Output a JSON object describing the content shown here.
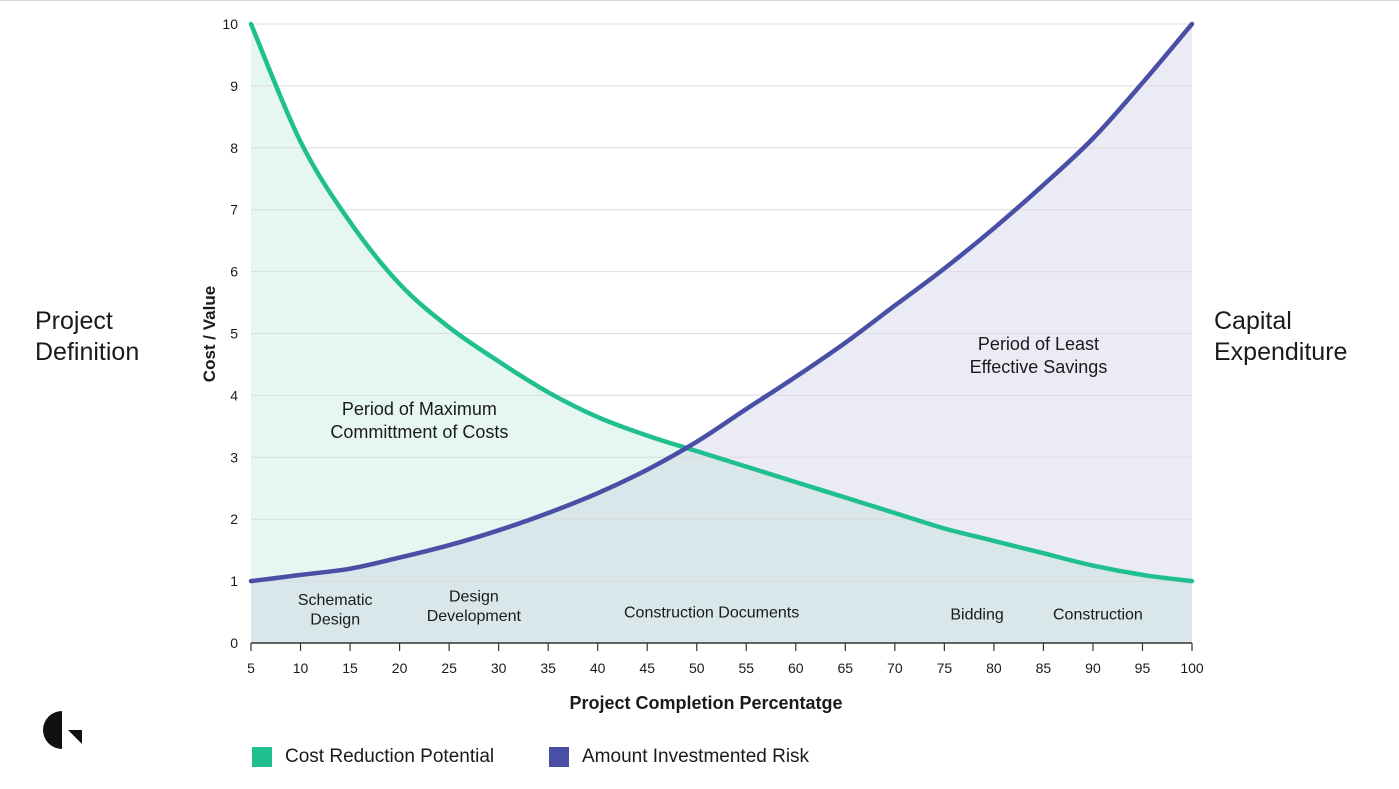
{
  "side_labels": {
    "left": [
      "Project",
      "Definition"
    ],
    "right": [
      "Capital",
      "Expenditure"
    ]
  },
  "logo": {
    "icon": "brand-logo-icon",
    "color": "#111111"
  },
  "colors": {
    "green": "#1fbf8f",
    "green_fill": "#e6f7f1",
    "purple": "#4a4fa6",
    "purple_fill": "#ebebf6",
    "overlap_fill": "#d9e6ea",
    "grid": "#dcdcdc",
    "axis": "#333333"
  },
  "chart_data": {
    "type": "line",
    "xlabel": "Project Completion Percentatge",
    "ylabel": "Cost / Value",
    "xlim": [
      5,
      100
    ],
    "ylim": [
      0,
      10
    ],
    "x_ticks": [
      5,
      10,
      15,
      20,
      25,
      30,
      35,
      40,
      45,
      50,
      55,
      60,
      65,
      70,
      75,
      80,
      85,
      90,
      95,
      100
    ],
    "y_ticks": [
      0,
      1,
      2,
      3,
      4,
      5,
      6,
      7,
      8,
      9,
      10
    ],
    "grid": "horizontal",
    "legend_position": "bottom-left",
    "series": [
      {
        "name": "Cost Reduction Potential",
        "color": "#1fbf8f",
        "x": [
          5,
          10,
          15,
          20,
          25,
          30,
          35,
          40,
          45,
          50,
          55,
          60,
          65,
          70,
          75,
          80,
          85,
          90,
          95,
          100
        ],
        "values": [
          10,
          8.1,
          6.8,
          5.8,
          5.1,
          4.55,
          4.05,
          3.65,
          3.35,
          3.1,
          2.85,
          2.6,
          2.35,
          2.1,
          1.85,
          1.65,
          1.45,
          1.25,
          1.1,
          1.0
        ]
      },
      {
        "name": "Amount Investmented Risk",
        "color": "#4a4fa6",
        "x": [
          5,
          10,
          15,
          20,
          25,
          30,
          35,
          40,
          45,
          50,
          55,
          60,
          65,
          70,
          75,
          80,
          85,
          90,
          95,
          100
        ],
        "values": [
          1.0,
          1.1,
          1.2,
          1.38,
          1.58,
          1.82,
          2.1,
          2.42,
          2.8,
          3.25,
          3.78,
          4.3,
          4.85,
          5.45,
          6.05,
          6.7,
          7.4,
          8.15,
          9.05,
          10
        ]
      }
    ],
    "annotations": [
      {
        "id": "period-max",
        "lines": [
          "Period of Maximum",
          "Committment of Costs"
        ],
        "x": 22,
        "y": 3.6
      },
      {
        "id": "period-least",
        "lines": [
          "Period of Least",
          "Effective Savings"
        ],
        "x": 84.5,
        "y": 4.65
      },
      {
        "id": "phase-schematic",
        "lines": [
          "Schematic",
          "Design"
        ],
        "x": 13.5,
        "y": 0.55
      },
      {
        "id": "phase-design-dev",
        "lines": [
          "Design",
          "Development"
        ],
        "x": 27.5,
        "y": 0.6
      },
      {
        "id": "phase-construction-docs",
        "lines": [
          "Construction Documents"
        ],
        "x": 51.5,
        "y": 0.5
      },
      {
        "id": "phase-bidding",
        "lines": [
          "Bidding"
        ],
        "x": 78.3,
        "y": 0.47
      },
      {
        "id": "phase-construction",
        "lines": [
          "Construction"
        ],
        "x": 90.5,
        "y": 0.47
      }
    ]
  }
}
